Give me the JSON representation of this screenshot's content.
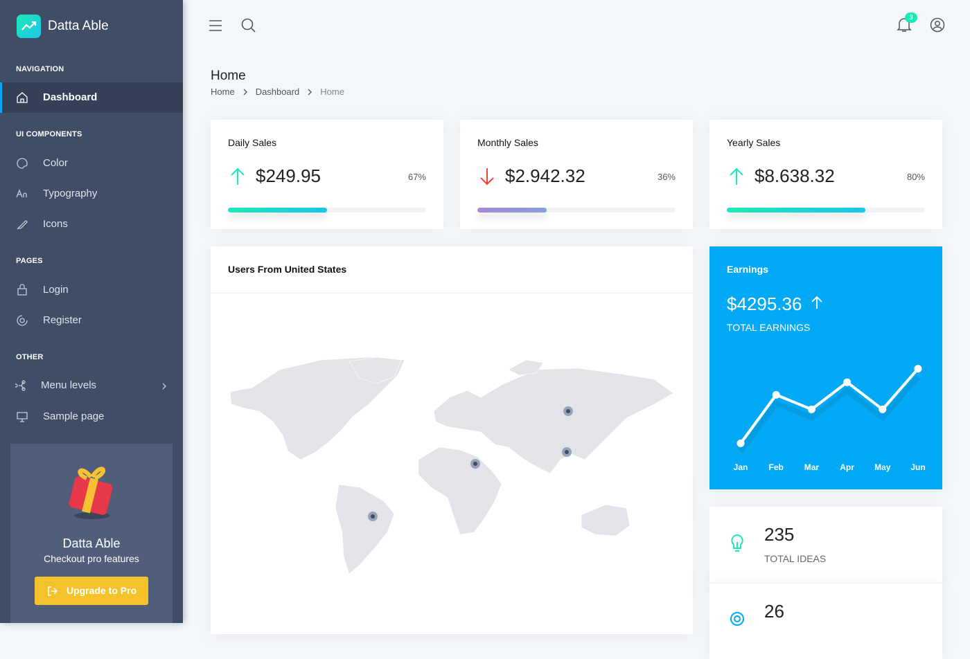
{
  "brand": "Datta Able",
  "header": {
    "notification_count": 3
  },
  "sidebar": {
    "sections": [
      {
        "title": "NAVIGATION",
        "items": [
          "Dashboard"
        ]
      },
      {
        "title": "UI COMPONENTS",
        "items": [
          "Color",
          "Typography",
          "Icons"
        ]
      },
      {
        "title": "PAGES",
        "items": [
          "Login",
          "Register"
        ]
      },
      {
        "title": "OTHER",
        "items": [
          "Menu levels",
          "Sample page"
        ]
      }
    ]
  },
  "promo": {
    "title": "Datta Able",
    "subtitle": "Checkout pro features",
    "button": "Upgrade to Pro"
  },
  "page": {
    "title": "Home",
    "breadcrumb": [
      "Home",
      "Dashboard",
      "Home"
    ]
  },
  "stats": [
    {
      "title": "Daily Sales",
      "amount": "$249.95",
      "trend": "up",
      "percent": "67%",
      "progress": 50,
      "color": "#1de9b6",
      "color2": "#1dc4e9"
    },
    {
      "title": "Monthly Sales",
      "amount": "$2.942.32",
      "trend": "down",
      "percent": "36%",
      "progress": 35,
      "color": "#a389d4",
      "color2": "#899ed4"
    },
    {
      "title": "Yearly Sales",
      "amount": "$8.638.32",
      "trend": "up",
      "percent": "80%",
      "progress": 70,
      "color": "#1de9b6",
      "color2": "#1dc4e9"
    }
  ],
  "map": {
    "title": "Users From United States"
  },
  "earnings": {
    "title": "Earnings",
    "amount": "$4295.36",
    "caption": "TOTAL EARNINGS",
    "chart": {
      "type": "line",
      "categories": [
        "Jan",
        "Feb",
        "Mar",
        "Apr",
        "May",
        "Jun"
      ],
      "values": [
        14,
        64,
        49,
        77,
        49,
        91
      ],
      "ylim": [
        0,
        100
      ],
      "color": "#ffffff"
    }
  },
  "metrics": [
    {
      "value": "235",
      "label": "TOTAL IDEAS"
    },
    {
      "value": "26"
    }
  ]
}
